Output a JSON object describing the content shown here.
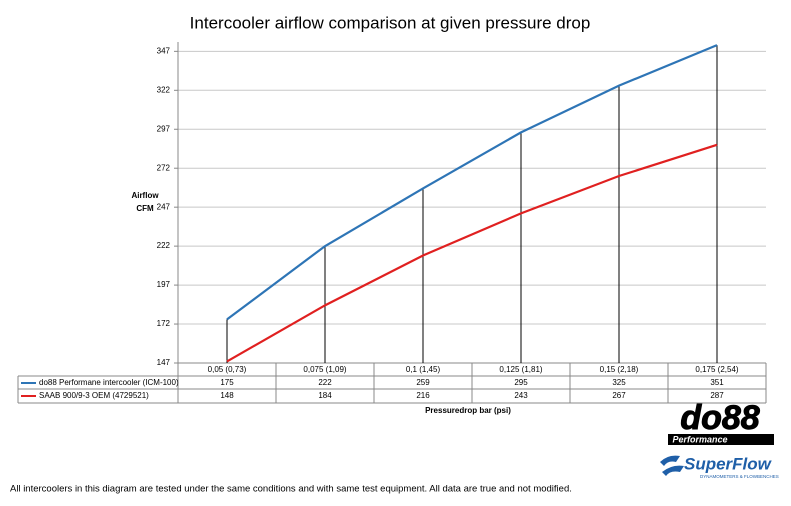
{
  "chart_data": {
    "type": "line",
    "title": "Intercooler airflow comparison at given pressure drop",
    "y_label": [
      "Airflow",
      "CFM"
    ],
    "x_label": "Pressuredrop bar (psi)",
    "categories": [
      "0,05 (0,73)",
      "0,075 (1,09)",
      "0,1 (1,45)",
      "0,125 (1,81)",
      "0,15 (2,18)",
      "0,175 (2,54)"
    ],
    "series": [
      {
        "name": "do88 Performane intercooler (ICM-100)",
        "color": "#2e75b6",
        "values": [
          175,
          222,
          259,
          295,
          325,
          351
        ]
      },
      {
        "name": "SAAB 900/9-3 OEM (4729521)",
        "color": "#e02020",
        "values": [
          148,
          184,
          216,
          243,
          267,
          287
        ]
      }
    ],
    "ylim": [
      147,
      353
    ],
    "yticks": [
      147,
      172,
      197,
      222,
      247,
      272,
      297,
      322,
      347
    ],
    "grid": true,
    "drop_lines": true,
    "note": "All intercoolers in this diagram are tested under the same conditions and with same test equipment. All data are true and not modified.",
    "logos": {
      "do88": "do88",
      "do88_sub": "Performance",
      "superflow": "SuperFlow",
      "superflow_sub": "DYNAMOMETERS & FLOWBENCHES"
    }
  }
}
